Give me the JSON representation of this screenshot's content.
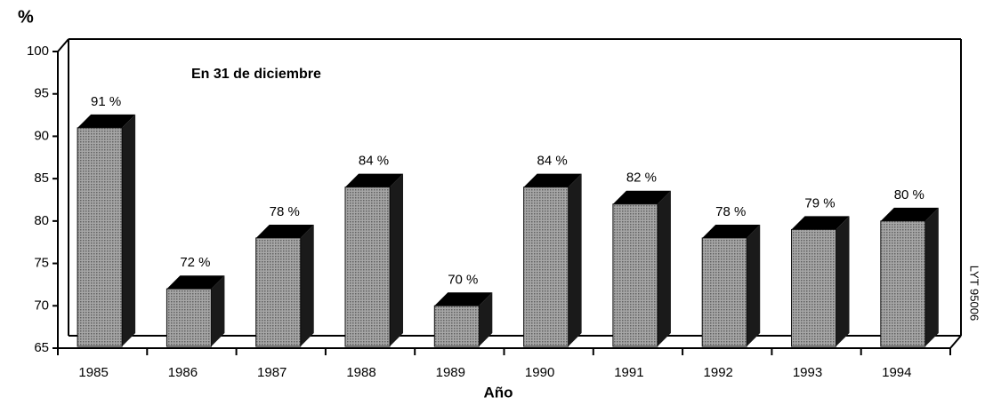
{
  "chart_data": {
    "type": "bar3d",
    "y_axis_label": "%",
    "x_axis_label": "Año",
    "annotation": "En 31 de diciembre",
    "side_note": "LYT 95006",
    "categories": [
      "1985",
      "1986",
      "1987",
      "1988",
      "1989",
      "1990",
      "1991",
      "1992",
      "1993",
      "1994"
    ],
    "values": [
      91,
      72,
      78,
      84,
      70,
      84,
      82,
      78,
      79,
      80
    ],
    "value_labels": [
      "91 %",
      "72 %",
      "78 %",
      "84 %",
      "70 %",
      "84 %",
      "82 %",
      "78 %",
      "79 %",
      "80 %"
    ],
    "color": "#8c8c8c",
    "ylim": [
      65,
      100
    ],
    "yticks": [
      65,
      70,
      75,
      80,
      85,
      90,
      95,
      100
    ],
    "grid": false
  }
}
